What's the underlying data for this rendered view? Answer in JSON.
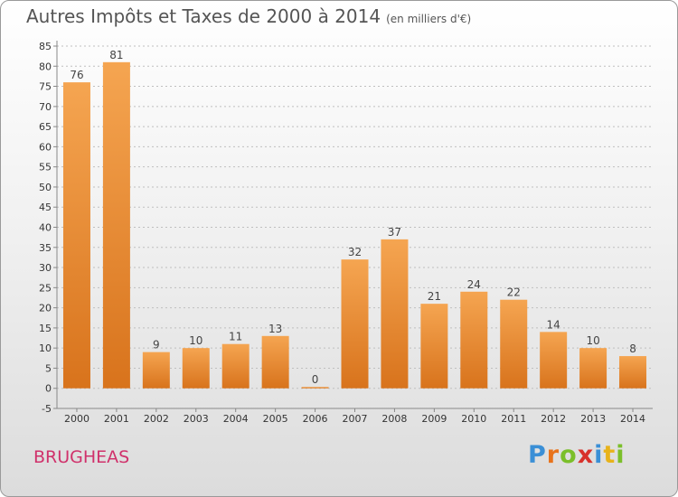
{
  "chart_data": {
    "type": "bar",
    "title": "Autres Impôts et Taxes de 2000 à 2014",
    "subtitle": "(en milliers d'€)",
    "categories": [
      "2000",
      "2001",
      "2002",
      "2003",
      "2004",
      "2005",
      "2006",
      "2007",
      "2008",
      "2009",
      "2010",
      "2011",
      "2012",
      "2013",
      "2014"
    ],
    "values": [
      76,
      81,
      9,
      10,
      11,
      13,
      0,
      32,
      37,
      21,
      24,
      22,
      14,
      10,
      8
    ],
    "ylim": [
      -5,
      85
    ],
    "yticks": [
      -5,
      0,
      5,
      10,
      15,
      20,
      25,
      30,
      35,
      40,
      45,
      50,
      55,
      60,
      65,
      70,
      75,
      80,
      85
    ],
    "grid": true,
    "xlabel": "",
    "ylabel": "",
    "colors": {
      "bar_light": "#f5a551",
      "bar_dark": "#d8731c",
      "grid": "#bfbfbf"
    }
  },
  "footer": {
    "commune": "BRUGHEAS",
    "logo_letters": [
      "P",
      "r",
      "o",
      "x",
      "i",
      "t",
      "i"
    ],
    "logo_colors": [
      "#3a8fd6",
      "#e8731b",
      "#7bbf2a",
      "#d8312b",
      "#3a8fd6",
      "#e8b31b",
      "#7bbf2a"
    ]
  }
}
